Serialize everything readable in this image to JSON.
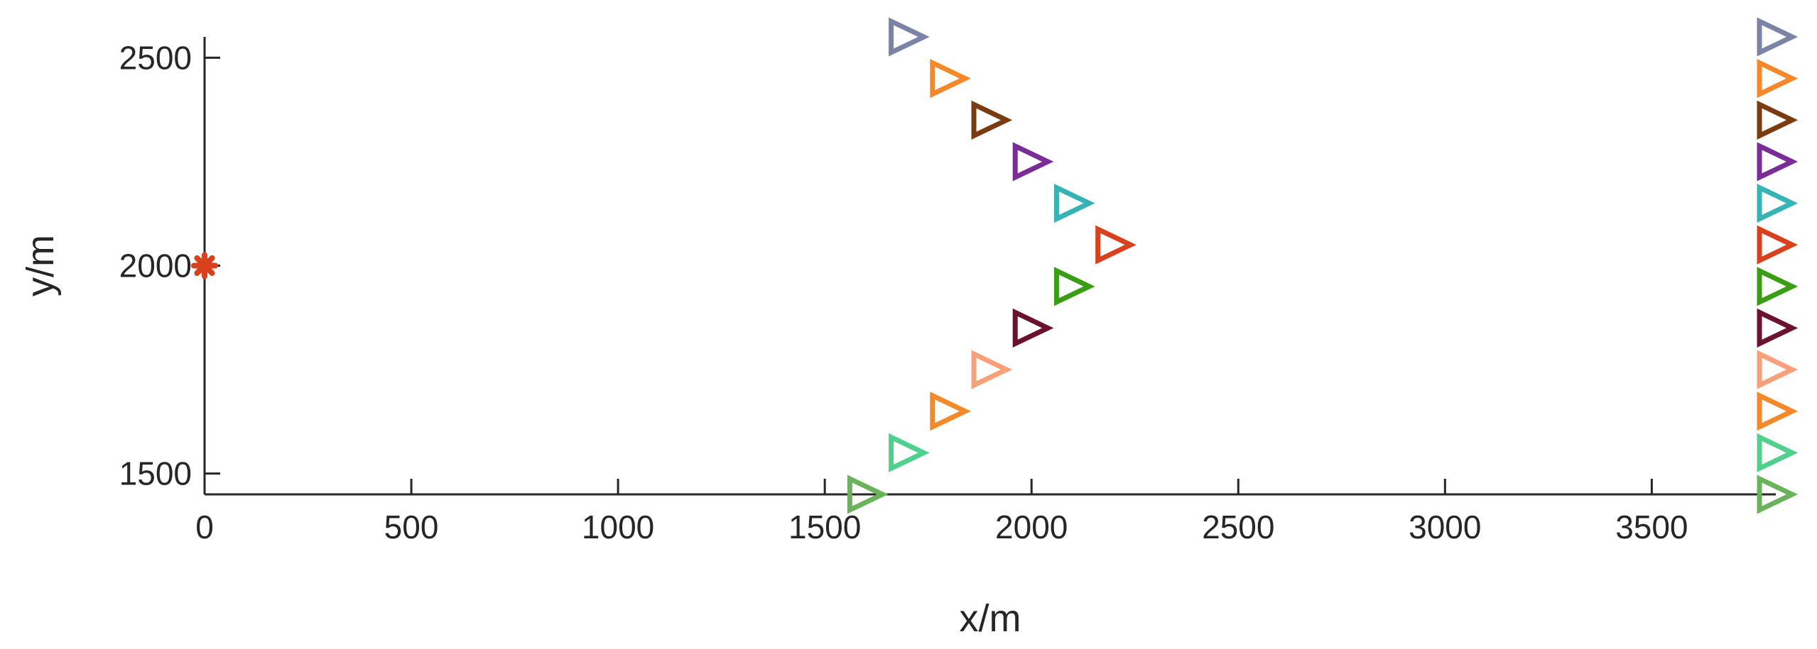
{
  "chart_data": {
    "type": "scatter",
    "xlabel": "x/m",
    "ylabel": "y/m",
    "xlim": [
      0,
      3800
    ],
    "ylim": [
      1450,
      2550
    ],
    "x_ticks": [
      0,
      500,
      1000,
      1500,
      2000,
      2500,
      3000,
      3500
    ],
    "y_ticks": [
      1500,
      2000,
      2500
    ],
    "grid": false,
    "source": {
      "x": 0,
      "y": 2000,
      "marker": "asterisk",
      "color": "#d9411e"
    },
    "series": [
      {
        "marker": "triangle-right",
        "points": [
          {
            "x": 1700,
            "y": 2550,
            "color": "#7b84a6"
          },
          {
            "x": 1800,
            "y": 2450,
            "color": "#f5892a"
          },
          {
            "x": 1900,
            "y": 2350,
            "color": "#7a3b10"
          },
          {
            "x": 2000,
            "y": 2250,
            "color": "#7a2d96"
          },
          {
            "x": 2100,
            "y": 2150,
            "color": "#35b3b5"
          },
          {
            "x": 2200,
            "y": 2050,
            "color": "#d9411e"
          },
          {
            "x": 2100,
            "y": 1950,
            "color": "#3a9e14"
          },
          {
            "x": 2000,
            "y": 1850,
            "color": "#6b1230"
          },
          {
            "x": 1900,
            "y": 1750,
            "color": "#f7a07a"
          },
          {
            "x": 1800,
            "y": 1650,
            "color": "#f5892a"
          },
          {
            "x": 1700,
            "y": 1550,
            "color": "#4fd08c"
          },
          {
            "x": 1600,
            "y": 1450,
            "color": "#6bb35a"
          }
        ]
      },
      {
        "marker": "triangle-right",
        "points": [
          {
            "x": 3800,
            "y": 2550,
            "color": "#7b84a6"
          },
          {
            "x": 3800,
            "y": 2450,
            "color": "#f5892a"
          },
          {
            "x": 3800,
            "y": 2350,
            "color": "#7a3b10"
          },
          {
            "x": 3800,
            "y": 2250,
            "color": "#7a2d96"
          },
          {
            "x": 3800,
            "y": 2150,
            "color": "#35b3b5"
          },
          {
            "x": 3800,
            "y": 2050,
            "color": "#d9411e"
          },
          {
            "x": 3800,
            "y": 1950,
            "color": "#3a9e14"
          },
          {
            "x": 3800,
            "y": 1850,
            "color": "#6b1230"
          },
          {
            "x": 3800,
            "y": 1750,
            "color": "#f7a07a"
          },
          {
            "x": 3800,
            "y": 1650,
            "color": "#f5892a"
          },
          {
            "x": 3800,
            "y": 1550,
            "color": "#4fd08c"
          },
          {
            "x": 3800,
            "y": 1450,
            "color": "#6bb35a"
          }
        ]
      }
    ]
  }
}
